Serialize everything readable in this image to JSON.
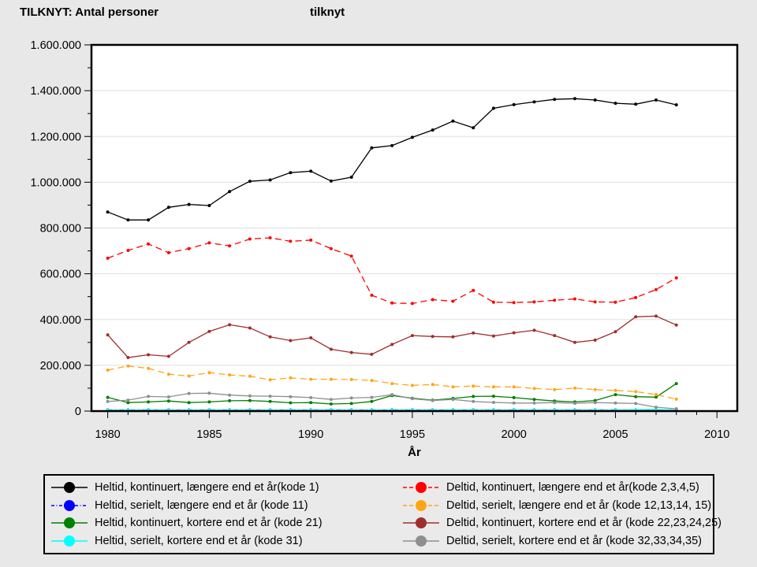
{
  "header": {
    "title": "TILKNYT: Antal personer",
    "subtitle": "tilknyt"
  },
  "chart_data": {
    "type": "line",
    "title": "TILKNYT: Antal personer",
    "subtitle": "tilknyt",
    "xlabel": "År",
    "ylabel": "",
    "grid": "horizontal-major",
    "legend_position": "bottom",
    "legend_columns": 2,
    "xlim": [
      1979.2,
      2011.0
    ],
    "ylim": [
      0,
      1600000
    ],
    "x_major_ticks": [
      1980,
      1985,
      1990,
      1995,
      2000,
      2005,
      2010
    ],
    "x_minor_step": 1,
    "y_minor_step": 100000,
    "y_major_ticks": [
      {
        "value": 0,
        "label": "0"
      },
      {
        "value": 200000,
        "label": "200.000"
      },
      {
        "value": 400000,
        "label": "400.000"
      },
      {
        "value": 600000,
        "label": "600.000"
      },
      {
        "value": 800000,
        "label": "800.000"
      },
      {
        "value": 1000000,
        "label": "1.000.000"
      },
      {
        "value": 1200000,
        "label": "1.200.000"
      },
      {
        "value": 1400000,
        "label": "1.400.000"
      },
      {
        "value": 1600000,
        "label": "1.600.000"
      }
    ],
    "x": [
      1980,
      1981,
      1982,
      1983,
      1984,
      1985,
      1986,
      1987,
      1988,
      1989,
      1990,
      1991,
      1992,
      1993,
      1994,
      1995,
      1996,
      1997,
      1998,
      1999,
      2000,
      2001,
      2002,
      2003,
      2004,
      2005,
      2006,
      2007,
      2008
    ],
    "series": [
      {
        "name": "Heltid, kontinuert, længere end et år(kode 1)",
        "color": "#000000",
        "style": "solid",
        "values": [
          870000,
          835000,
          835000,
          890000,
          903000,
          898000,
          959000,
          1004000,
          1010000,
          1042000,
          1048000,
          1005000,
          1022000,
          1150000,
          1160000,
          1196000,
          1228000,
          1267000,
          1238000,
          1323000,
          1339000,
          1351000,
          1362000,
          1365000,
          1359000,
          1345000,
          1341000,
          1359000,
          1338000
        ]
      },
      {
        "name": "Heltid, serielt, længere end et år (kode 11)",
        "color": "#0000ff",
        "style": "dashdot",
        "values": [
          5000,
          5000,
          5000,
          5000,
          5000,
          5000,
          5000,
          5000,
          5000,
          5000,
          5000,
          5000,
          5000,
          5000,
          5000,
          5000,
          5000,
          5000,
          5000,
          5000,
          5000,
          5000,
          5000,
          5000,
          5000,
          5000,
          5000,
          5000,
          5000
        ]
      },
      {
        "name": "Heltid, kontinuert, kortere end et år (kode 21)",
        "color": "#008000",
        "style": "solid",
        "values": [
          60000,
          37000,
          40000,
          44000,
          37000,
          40000,
          45000,
          46000,
          42000,
          36000,
          37000,
          31000,
          33000,
          42000,
          68000,
          56000,
          48000,
          55000,
          64000,
          65000,
          59000,
          51000,
          44000,
          40000,
          46000,
          72000,
          63000,
          61000,
          120000
        ]
      },
      {
        "name": "Heltid, serielt, kortere end et år (kode 31)",
        "color": "#00ffff",
        "style": "solid",
        "values": [
          4000,
          4000,
          4000,
          4000,
          4000,
          4000,
          4000,
          4000,
          4000,
          4000,
          4000,
          4000,
          4000,
          4000,
          4000,
          4000,
          4000,
          4000,
          4000,
          4000,
          4000,
          4000,
          4000,
          4000,
          4000,
          4000,
          6000,
          7000,
          4000
        ]
      },
      {
        "name": "Deltid, kontinuert, længere end et år(kode 2,3,4,5)",
        "color": "#ff0000",
        "style": "dashed",
        "values": [
          668000,
          702000,
          730000,
          692000,
          710000,
          735000,
          722000,
          752000,
          757000,
          742000,
          747000,
          710000,
          677000,
          506000,
          472000,
          470000,
          487000,
          480000,
          527000,
          476000,
          474000,
          477000,
          484000,
          490000,
          477000,
          476000,
          496000,
          531000,
          582000
        ]
      },
      {
        "name": "Deltid, serielt, længere end et år (kode 12,13,14, 15)",
        "color": "#ffa514",
        "style": "dashed",
        "values": [
          179000,
          197000,
          187000,
          161000,
          153000,
          168000,
          158000,
          152000,
          137000,
          145000,
          139000,
          139000,
          138000,
          134000,
          120000,
          112000,
          116000,
          106000,
          109000,
          106000,
          106000,
          99000,
          94000,
          100000,
          94000,
          90000,
          85000,
          72000,
          52000
        ]
      },
      {
        "name": "Deltid, kontinuert, kortere end et år (kode 22,23,24,25)",
        "color": "#a02d2d",
        "style": "solid",
        "values": [
          333000,
          234000,
          246000,
          239000,
          300000,
          348000,
          377000,
          363000,
          324000,
          308000,
          320000,
          270000,
          256000,
          248000,
          291000,
          330000,
          326000,
          324000,
          341000,
          328000,
          342000,
          353000,
          330000,
          300000,
          310000,
          347000,
          412000,
          415000,
          376000
        ]
      },
      {
        "name": "Deltid, serielt, kortere end et år (kode 32,33,34,35)",
        "color": "#8f8f8f",
        "style": "solid",
        "values": [
          42000,
          48000,
          64000,
          62000,
          77000,
          78000,
          70000,
          66000,
          65000,
          63000,
          59000,
          51000,
          57000,
          60000,
          72000,
          54000,
          46000,
          51000,
          42000,
          38000,
          35000,
          35000,
          37000,
          34000,
          37000,
          35000,
          33000,
          17000,
          10000
        ]
      }
    ]
  }
}
